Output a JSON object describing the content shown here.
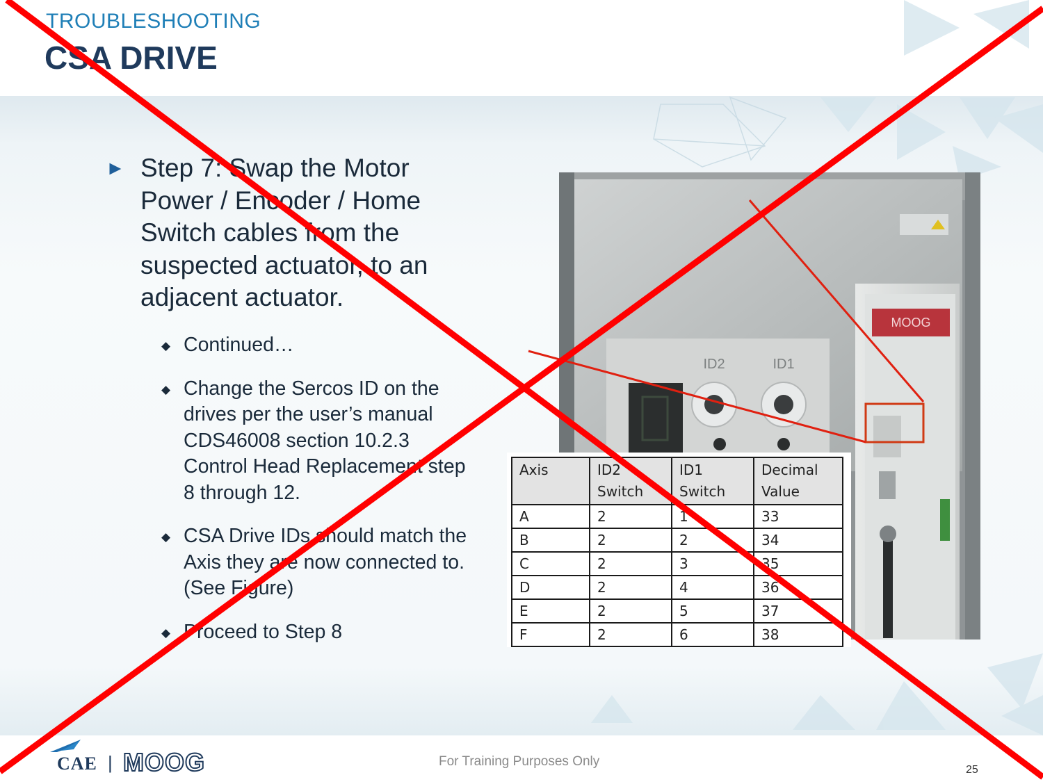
{
  "header": {
    "section": "TROUBLESHOOTING",
    "title": "CSA DRIVE"
  },
  "content": {
    "step_text": "Step 7: Swap the Motor Power / Encoder / Home Switch cables from the suspected actuator, to an adjacent actuator.",
    "bullets": [
      "Continued…",
      "Change the Sercos ID on the drives per the user’s manual CDS46008 section 10.2.3 Control Head Replacement step 8 through 12.",
      "CSA Drive IDs should match the Axis they are now connected to. (See Figure)",
      "Proceed to Step 8"
    ]
  },
  "figure": {
    "brand_label": "MOOG",
    "dial_labels": [
      "ID2",
      "ID1"
    ],
    "table": {
      "headers": [
        "Axis",
        "ID2 Switch",
        "ID1 Switch",
        "Decimal Value"
      ],
      "rows": [
        [
          "A",
          "2",
          "1",
          "33"
        ],
        [
          "B",
          "2",
          "2",
          "34"
        ],
        [
          "C",
          "2",
          "3",
          "35"
        ],
        [
          "D",
          "2",
          "4",
          "36"
        ],
        [
          "E",
          "2",
          "5",
          "37"
        ],
        [
          "F",
          "2",
          "6",
          "38"
        ]
      ]
    }
  },
  "footer": {
    "notice": "For Training Purposes Only",
    "page_number": "25",
    "logo_left": "CAE",
    "logo_separator": "|",
    "logo_right": "MOOG"
  },
  "colors": {
    "title_dark": "#1f3a5c",
    "section_blue": "#1f7fb7",
    "cross_red": "#ff0000",
    "callout_red": "#e02010"
  }
}
